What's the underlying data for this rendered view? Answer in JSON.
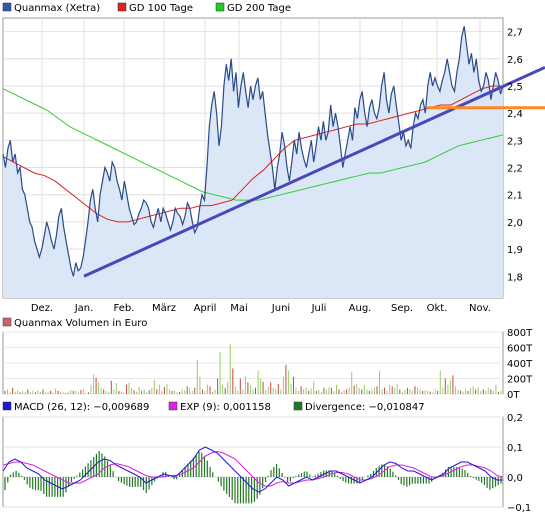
{
  "chart_data": [
    {
      "type": "line",
      "legend": [
        {
          "label": "Quanmax (Xetra)",
          "color": "#3355aa"
        },
        {
          "label": "GD 100 Tage",
          "color": "#dd2222"
        },
        {
          "label": "GD 200 Tage",
          "color": "#22cc22"
        }
      ],
      "x_labels": [
        "Dez.",
        "Jan.",
        "Feb.",
        "März",
        "April",
        "Mai",
        "Juni",
        "Juli",
        "Aug.",
        "Sep.",
        "Okt.",
        "Nov."
      ],
      "y_ticks": [
        "2,7",
        "2,6",
        "2,5",
        "2,4",
        "2,3",
        "2,2",
        "2,1",
        "2,0",
        "1,9",
        "1,8"
      ],
      "ylim": [
        1.72,
        2.75
      ],
      "series": [
        {
          "name": "Quanmax (Xetra)",
          "color": "#2a4a8a",
          "values": [
            2.25,
            2.2,
            2.27,
            2.3,
            2.22,
            2.25,
            2.18,
            2.2,
            2.12,
            2.1,
            2.05,
            2.0,
            1.98,
            1.93,
            1.9,
            1.87,
            1.9,
            1.95,
            2.0,
            1.97,
            1.93,
            1.9,
            1.95,
            2.02,
            2.05,
            1.98,
            1.93,
            1.88,
            1.83,
            1.8,
            1.85,
            1.82,
            1.83,
            1.87,
            1.93,
            2.0,
            2.08,
            2.12,
            2.05,
            2.0,
            2.1,
            2.15,
            2.2,
            2.18,
            2.15,
            2.22,
            2.2,
            2.15,
            2.12,
            2.08,
            2.15,
            2.1,
            2.05,
            2.02,
            1.99,
            2.0,
            2.03,
            2.05,
            2.08,
            2.07,
            2.05,
            2.0,
            1.98,
            2.02,
            2.05,
            2.0,
            2.05,
            2.03,
            2.0,
            1.97,
            2.0,
            2.05,
            2.03,
            2.02,
            1.99,
            2.02,
            2.07,
            2.05,
            2.0,
            1.96,
            1.98,
            2.05,
            2.1,
            2.08,
            2.2,
            2.35,
            2.43,
            2.48,
            2.4,
            2.28,
            2.35,
            2.5,
            2.58,
            2.52,
            2.6,
            2.48,
            2.55,
            2.42,
            2.5,
            2.55,
            2.48,
            2.42,
            2.5,
            2.45,
            2.5,
            2.53,
            2.45,
            2.48,
            2.4,
            2.32,
            2.26,
            2.2,
            2.12,
            2.2,
            2.25,
            2.33,
            2.28,
            2.2,
            2.15,
            2.22,
            2.3,
            2.25,
            2.33,
            2.27,
            2.23,
            2.2,
            2.25,
            2.3,
            2.22,
            2.28,
            2.35,
            2.3,
            2.37,
            2.3,
            2.33,
            2.43,
            2.35,
            2.4,
            2.35,
            2.28,
            2.2,
            2.25,
            2.3,
            2.35,
            2.3,
            2.42,
            2.38,
            2.45,
            2.48,
            2.4,
            2.35,
            2.42,
            2.45,
            2.4,
            2.38,
            2.42,
            2.5,
            2.55,
            2.45,
            2.4,
            2.47,
            2.5,
            2.43,
            2.37,
            2.3,
            2.33,
            2.28,
            2.3,
            2.27,
            2.35,
            2.4,
            2.38,
            2.43,
            2.45,
            2.4,
            2.5,
            2.55,
            2.5,
            2.53,
            2.5,
            2.48,
            2.52,
            2.55,
            2.6,
            2.55,
            2.5,
            2.48,
            2.55,
            2.6,
            2.68,
            2.72,
            2.65,
            2.58,
            2.62,
            2.55,
            2.6,
            2.52,
            2.48,
            2.5,
            2.55,
            2.52,
            2.45,
            2.5,
            2.55,
            2.52,
            2.47,
            2.5
          ]
        },
        {
          "name": "GD 100 Tage",
          "color": "#dd2222",
          "values": [
            2.24,
            2.22,
            2.2,
            2.18,
            2.17,
            2.15,
            2.12,
            2.09,
            2.06,
            2.03,
            2.01,
            2.0,
            2.0,
            2.01,
            2.02,
            2.03,
            2.04,
            2.05,
            2.05,
            2.06,
            2.06,
            2.07,
            2.08,
            2.12,
            2.16,
            2.19,
            2.23,
            2.27,
            2.3,
            2.31,
            2.32,
            2.33,
            2.34,
            2.35,
            2.36,
            2.36,
            2.37,
            2.38,
            2.39,
            2.4,
            2.41,
            2.42,
            2.43,
            2.43,
            2.45,
            2.47,
            2.49,
            2.5,
            2.5
          ]
        },
        {
          "name": "GD 200 Tage",
          "color": "#33cc33",
          "values": [
            2.49,
            2.47,
            2.45,
            2.43,
            2.41,
            2.38,
            2.35,
            2.33,
            2.31,
            2.29,
            2.27,
            2.25,
            2.23,
            2.21,
            2.19,
            2.17,
            2.15,
            2.13,
            2.11,
            2.1,
            2.09,
            2.08,
            2.08,
            2.08,
            2.09,
            2.1,
            2.11,
            2.12,
            2.13,
            2.14,
            2.15,
            2.16,
            2.17,
            2.18,
            2.18,
            2.19,
            2.2,
            2.21,
            2.22,
            2.24,
            2.26,
            2.28,
            2.29,
            2.3,
            2.31,
            2.32
          ]
        }
      ],
      "annotations": [
        {
          "kind": "trendline",
          "color": "#4848bb",
          "from": [
            "Jan.",
            1.8
          ],
          "to": [
            "Nov.",
            2.46
          ]
        },
        {
          "kind": "horizontal-line",
          "color": "#ff8822",
          "y": 2.42
        }
      ]
    },
    {
      "type": "bar",
      "legend": [
        {
          "label": "Quanmax Volumen in Euro",
          "color": "#cc6666"
        }
      ],
      "y_ticks": [
        "800T",
        "600T",
        "400T",
        "200T",
        "0T"
      ],
      "ylim": [
        0,
        800
      ],
      "values": [
        40,
        60,
        20,
        80,
        30,
        50,
        20,
        40,
        30,
        60,
        30,
        40,
        20,
        50,
        30,
        60,
        20,
        30,
        40,
        20,
        70,
        40,
        30,
        20,
        10,
        30,
        50,
        40,
        40,
        20,
        50,
        60,
        10,
        20,
        120,
        250,
        210,
        150,
        80,
        60,
        40,
        30,
        170,
        60,
        140,
        40,
        30,
        20,
        120,
        150,
        80,
        50,
        30,
        90,
        40,
        60,
        20,
        50,
        80,
        180,
        60,
        120,
        40,
        90,
        130,
        60,
        40,
        40,
        20,
        30,
        60,
        50,
        100,
        80,
        40,
        80,
        440,
        220,
        60,
        40,
        120,
        100,
        30,
        60,
        200,
        540,
        120,
        80,
        160,
        640,
        330,
        100,
        40,
        200,
        60,
        230,
        150,
        120,
        60,
        80,
        300,
        200,
        160,
        50,
        90,
        150,
        80,
        60,
        130,
        60,
        220,
        380,
        300,
        130,
        220,
        80,
        40,
        100,
        60,
        80,
        40,
        70,
        160,
        40,
        50,
        30,
        80,
        60,
        90,
        80,
        40,
        120,
        60,
        30,
        50,
        60,
        80,
        280,
        110,
        130,
        80,
        60,
        120,
        60,
        40,
        60,
        80,
        100,
        300,
        60,
        80,
        40,
        120,
        100,
        80,
        130,
        60,
        30,
        50,
        80,
        60,
        40,
        100,
        80,
        60,
        40,
        50,
        40,
        30,
        20,
        60,
        40,
        300,
        80,
        200,
        120,
        180,
        240,
        100,
        60,
        40,
        30,
        60,
        40,
        80,
        100,
        60,
        80,
        40,
        60,
        40,
        80,
        60,
        40,
        120,
        30,
        40
      ]
    },
    {
      "type": "line",
      "legend": [
        {
          "label": "MACD (26, 12): −0,009689",
          "color": "#1a1acc"
        },
        {
          "label": "EXP (9): 0,001158",
          "color": "#dd22dd"
        },
        {
          "label": "Divergence: −0,010847",
          "color": "#227722"
        }
      ],
      "y_ticks": [
        "0,2",
        "0,1",
        "0,0",
        "−0,1"
      ],
      "ylim": [
        -0.1,
        0.2
      ],
      "series": [
        {
          "name": "MACD",
          "color": "#1a1acc",
          "values": [
            0.02,
            0.05,
            0.06,
            0.05,
            0.03,
            0.02,
            0.01,
            -0.01,
            -0.02,
            -0.03,
            -0.04,
            -0.03,
            -0.02,
            -0.01,
            0.01,
            0.03,
            0.05,
            0.06,
            0.055,
            0.04,
            0.03,
            0.02,
            0.01,
            0.0,
            -0.02,
            -0.01,
            0.0,
            0.01,
            0.005,
            0.0,
            0.02,
            0.04,
            0.06,
            0.09,
            0.1,
            0.09,
            0.08,
            0.06,
            0.04,
            0.02,
            0.0,
            -0.02,
            -0.04,
            -0.05,
            -0.04,
            -0.02,
            0.0,
            -0.01,
            -0.03,
            -0.02,
            -0.01,
            0.0,
            -0.01,
            0.0,
            0.01,
            0.02,
            0.02,
            0.01,
            0.0,
            -0.01,
            -0.02,
            -0.01,
            0.0,
            0.02,
            0.04,
            0.05,
            0.045,
            0.03,
            0.02,
            0.02,
            0.01,
            0.0,
            -0.01,
            0.0,
            0.01,
            0.03,
            0.04,
            0.05,
            0.05,
            0.04,
            0.03,
            0.02,
            0.0,
            -0.01,
            -0.01
          ]
        },
        {
          "name": "EXP",
          "color": "#dd22dd",
          "values": [
            0.04,
            0.045,
            0.05,
            0.05,
            0.045,
            0.04,
            0.03,
            0.02,
            0.01,
            0.0,
            -0.01,
            -0.02,
            -0.02,
            -0.02,
            -0.01,
            0.0,
            0.01,
            0.03,
            0.04,
            0.045,
            0.04,
            0.035,
            0.025,
            0.015,
            0.005,
            0.0,
            0.0,
            0.0,
            0.005,
            0.005,
            0.01,
            0.02,
            0.03,
            0.05,
            0.07,
            0.08,
            0.085,
            0.08,
            0.07,
            0.06,
            0.04,
            0.02,
            0.0,
            -0.02,
            -0.03,
            -0.03,
            -0.02,
            -0.015,
            -0.02,
            -0.02,
            -0.015,
            -0.01,
            -0.01,
            -0.005,
            0.0,
            0.01,
            0.015,
            0.015,
            0.01,
            0.0,
            -0.01,
            -0.01,
            -0.005,
            0.005,
            0.02,
            0.035,
            0.04,
            0.04,
            0.035,
            0.03,
            0.02,
            0.01,
            0.0,
            0.0,
            0.005,
            0.015,
            0.025,
            0.035,
            0.04,
            0.04,
            0.035,
            0.03,
            0.02,
            0.005,
            0.0
          ]
        }
      ]
    }
  ]
}
